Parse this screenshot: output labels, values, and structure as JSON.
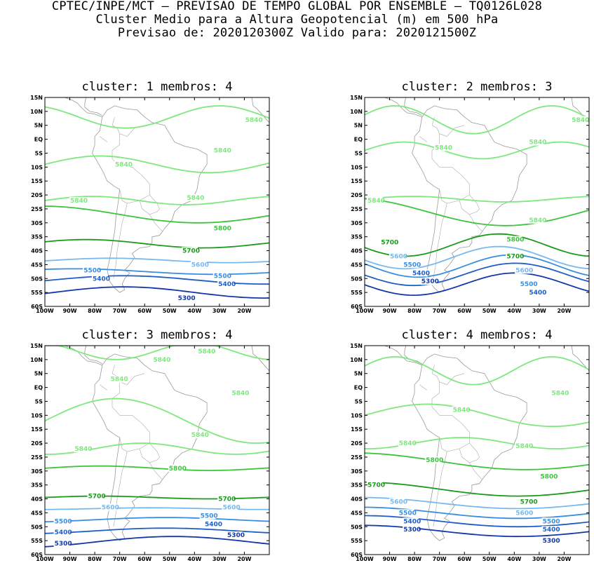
{
  "header": {
    "line1": "CPTEC/INPE/MCT — PREVISAO DE TEMPO GLOBAL POR ENSEMBLE — TQ0126L028",
    "line2": "Cluster Medio para a Altura Geopotencial (m) em 500 hPa",
    "line3": "Previsao de: 2020120300Z   Valido para: 2020121500Z"
  },
  "axes": {
    "lat_labels": [
      "15N",
      "10N",
      "5N",
      "EQ",
      "5S",
      "10S",
      "15S",
      "20S",
      "25S",
      "30S",
      "35S",
      "40S",
      "45S",
      "50S",
      "55S",
      "60S"
    ],
    "lon_labels": [
      "100W",
      "90W",
      "80W",
      "70W",
      "60W",
      "50W",
      "40W",
      "30W",
      "20W"
    ]
  },
  "colors": {
    "c5840": "#7ee87e",
    "c5800": "#3cc43c",
    "c5700": "#1a9a1a",
    "c5600": "#78b8ee",
    "c5500": "#3a8ee0",
    "c5400": "#1f5ec8",
    "c5300": "#1238a8",
    "c5200": "#5a3aa8"
  },
  "panels": [
    {
      "title": "cluster: 1   membros: 4",
      "contours": [
        {
          "level": "5840",
          "label_pos": [
            [
              0.88,
              7
            ],
            [
              0.74,
              -4
            ],
            [
              0.3,
              -9
            ],
            [
              0.62,
              -21
            ],
            [
              0.1,
              -22
            ]
          ]
        },
        {
          "level": "5800",
          "label_pos": [
            [
              0.74,
              -32
            ]
          ]
        },
        {
          "level": "5700",
          "label_pos": [
            [
              0.6,
              -40
            ]
          ]
        },
        {
          "level": "5600",
          "label_pos": [
            [
              0.64,
              -45
            ]
          ]
        },
        {
          "level": "5500",
          "label_pos": [
            [
              0.16,
              -47
            ],
            [
              0.74,
              -49
            ]
          ]
        },
        {
          "level": "5400",
          "label_pos": [
            [
              0.2,
              -50
            ],
            [
              0.76,
              -52
            ]
          ]
        },
        {
          "level": "5300",
          "label_pos": [
            [
              0.58,
              -57
            ]
          ]
        }
      ]
    },
    {
      "title": "cluster: 2   membros: 3",
      "contours": [
        {
          "level": "5840",
          "label_pos": [
            [
              0.91,
              7
            ],
            [
              0.72,
              -1
            ],
            [
              0.3,
              -3
            ],
            [
              0.0,
              -22
            ],
            [
              0.72,
              -29
            ]
          ]
        },
        {
          "level": "5800",
          "label_pos": [
            [
              0.62,
              -36
            ]
          ]
        },
        {
          "level": "5700",
          "label_pos": [
            [
              0.06,
              -37
            ],
            [
              0.62,
              -42
            ]
          ]
        },
        {
          "level": "5600",
          "label_pos": [
            [
              0.1,
              -42
            ],
            [
              0.66,
              -47
            ]
          ]
        },
        {
          "level": "5500",
          "label_pos": [
            [
              0.16,
              -45
            ],
            [
              0.68,
              -52
            ]
          ]
        },
        {
          "level": "5400",
          "label_pos": [
            [
              0.2,
              -48
            ],
            [
              0.72,
              -55
            ]
          ]
        },
        {
          "level": "5300",
          "label_pos": [
            [
              0.24,
              -51
            ]
          ]
        }
      ]
    },
    {
      "title": "cluster: 3   membros: 4",
      "contours": [
        {
          "level": "5840",
          "label_pos": [
            [
              0.67,
              13
            ],
            [
              0.47,
              10
            ],
            [
              0.28,
              3
            ],
            [
              0.82,
              -2
            ],
            [
              0.64,
              -17
            ],
            [
              0.12,
              -22
            ]
          ]
        },
        {
          "level": "5800",
          "label_pos": [
            [
              0.54,
              -29
            ]
          ]
        },
        {
          "level": "5700",
          "label_pos": [
            [
              0.18,
              -39
            ],
            [
              0.76,
              -40
            ]
          ]
        },
        {
          "level": "5600",
          "label_pos": [
            [
              0.24,
              -43
            ],
            [
              0.78,
              -43
            ]
          ]
        },
        {
          "level": "5500",
          "label_pos": [
            [
              0.03,
              -48
            ],
            [
              0.68,
              -46
            ]
          ]
        },
        {
          "level": "5400",
          "label_pos": [
            [
              0.03,
              -52
            ],
            [
              0.7,
              -49
            ]
          ]
        },
        {
          "level": "5300",
          "label_pos": [
            [
              0.03,
              -56
            ],
            [
              0.8,
              -53
            ]
          ]
        }
      ]
    },
    {
      "title": "cluster: 4   membros: 4",
      "contours": [
        {
          "level": "5840",
          "label_pos": [
            [
              0.82,
              -2
            ],
            [
              0.38,
              -8
            ],
            [
              0.66,
              -21
            ],
            [
              0.14,
              -20
            ]
          ]
        },
        {
          "level": "5800",
          "label_pos": [
            [
              0.26,
              -26
            ],
            [
              0.77,
              -32
            ]
          ]
        },
        {
          "level": "5700",
          "label_pos": [
            [
              0.0,
              -35
            ],
            [
              0.68,
              -41
            ]
          ]
        },
        {
          "level": "5600",
          "label_pos": [
            [
              0.1,
              -41
            ],
            [
              0.66,
              -45
            ]
          ]
        },
        {
          "level": "5500",
          "label_pos": [
            [
              0.14,
              -45
            ],
            [
              0.78,
              -48
            ]
          ]
        },
        {
          "level": "5400",
          "label_pos": [
            [
              0.16,
              -48
            ],
            [
              0.78,
              -51
            ]
          ]
        },
        {
          "level": "5300",
          "label_pos": [
            [
              0.16,
              -51
            ],
            [
              0.78,
              -55
            ]
          ]
        }
      ]
    }
  ]
}
